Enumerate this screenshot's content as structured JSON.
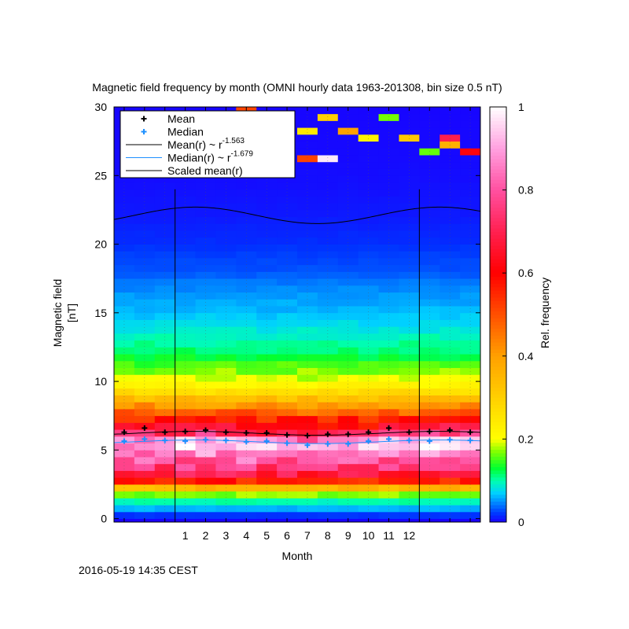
{
  "footer": {
    "timestamp": "2016-05-19 14:35 CEST"
  },
  "chart_data": {
    "type": "heatmap",
    "title": "Magnetic field frequency by month (OMNI hourly data 1963-201308, bin size 0.5 nT)",
    "xlabel": "Month",
    "ylabel": [
      "Magnetic field",
      "[nT]"
    ],
    "colorbar_label": "Rel. frequency",
    "xlim": [
      -2.5,
      15.5
    ],
    "ylim": [
      -0.25,
      30
    ],
    "x_ticks": [
      "1",
      "2",
      "3",
      "4",
      "5",
      "6",
      "7",
      "8",
      "9",
      "10",
      "11",
      "12"
    ],
    "y_ticks": [
      0,
      5,
      10,
      15,
      20,
      25,
      30
    ],
    "colorbar_ticks": [
      0,
      0.2,
      0.4,
      0.6,
      0.8,
      1
    ],
    "colorbar_range": [
      0,
      1
    ],
    "bin_size_nT": 0.5,
    "period_boundaries_month": [
      0.5,
      12.5
    ],
    "legend_position": "top-left",
    "legend": [
      {
        "label": "Mean",
        "kind": "point",
        "color": "#000000"
      },
      {
        "label": "Median",
        "kind": "point",
        "color": "#1e90ff"
      },
      {
        "label": "Mean(r) ~ r",
        "exponent": "-1.563",
        "kind": "line",
        "color": "#000000"
      },
      {
        "label": "Median(r) ~ r",
        "exponent": "-1.679",
        "kind": "line",
        "color": "#1e90ff"
      },
      {
        "label": "Scaled mean(r)",
        "kind": "line",
        "color": "#000000"
      }
    ],
    "months": [
      -2,
      -1,
      0,
      1,
      2,
      3,
      4,
      5,
      6,
      7,
      8,
      9,
      10,
      11,
      12,
      13,
      14,
      15
    ],
    "series": [
      {
        "name": "Mean",
        "values": [
          6.3,
          6.6,
          6.3,
          6.35,
          6.45,
          6.3,
          6.25,
          6.25,
          6.1,
          6.05,
          6.15,
          6.15,
          6.3,
          6.6,
          6.3,
          6.35,
          6.45,
          6.3
        ]
      },
      {
        "name": "Median",
        "values": [
          5.65,
          5.8,
          5.7,
          5.65,
          5.75,
          5.7,
          5.6,
          5.65,
          5.5,
          5.35,
          5.45,
          5.45,
          5.65,
          5.8,
          5.7,
          5.65,
          5.75,
          5.7
        ]
      },
      {
        "name": "Mean(r) ~ r^-1.563",
        "curve": {
          "center": 6.22,
          "amplitude": 0.14,
          "phase_month": 1.5
        }
      },
      {
        "name": "Median(r) ~ r^-1.679",
        "curve": {
          "center": 5.6,
          "amplitude": 0.13,
          "phase_month": 1.5
        }
      },
      {
        "name": "Scaled mean(r)",
        "curve": {
          "center": 22.1,
          "amplitude": 0.6,
          "phase_month": 1.5
        }
      }
    ],
    "heatmap_profile": {
      "peak_nT": 5.5,
      "note_peak_frequency": 1.0,
      "profile_points": [
        [
          0,
          0.0
        ],
        [
          0.5,
          0.04
        ],
        [
          1.0,
          0.08
        ],
        [
          1.5,
          0.12
        ],
        [
          2.0,
          0.22
        ],
        [
          2.5,
          0.48
        ],
        [
          3.0,
          0.65
        ],
        [
          3.5,
          0.72
        ],
        [
          4.0,
          0.78
        ],
        [
          4.5,
          0.85
        ],
        [
          5.0,
          0.88
        ],
        [
          5.5,
          0.96
        ],
        [
          6.0,
          0.78
        ],
        [
          6.5,
          0.65
        ],
        [
          7.0,
          0.6
        ],
        [
          7.5,
          0.52
        ],
        [
          8.0,
          0.44
        ],
        [
          8.5,
          0.38
        ],
        [
          9.0,
          0.3
        ],
        [
          9.5,
          0.24
        ],
        [
          10.0,
          0.2
        ],
        [
          11.0,
          0.16
        ],
        [
          12.0,
          0.12
        ],
        [
          13.0,
          0.1
        ],
        [
          14.0,
          0.08
        ],
        [
          15.0,
          0.065
        ],
        [
          16.0,
          0.055
        ],
        [
          17.0,
          0.045
        ],
        [
          18.0,
          0.03
        ],
        [
          19.0,
          0.025
        ],
        [
          20.0,
          0.018
        ],
        [
          22.0,
          0.01
        ],
        [
          24.0,
          0.006
        ],
        [
          26.0,
          0.004
        ],
        [
          30.0,
          0.002
        ]
      ]
    },
    "colormap": [
      [
        0.0,
        "#1a00ff"
      ],
      [
        0.02,
        "#0033ff"
      ],
      [
        0.05,
        "#0090ff"
      ],
      [
        0.07,
        "#00d0ff"
      ],
      [
        0.1,
        "#00ffb0"
      ],
      [
        0.13,
        "#00ff30"
      ],
      [
        0.17,
        "#80ff00"
      ],
      [
        0.2,
        "#ffff00"
      ],
      [
        0.3,
        "#ffd000"
      ],
      [
        0.4,
        "#ffa000"
      ],
      [
        0.5,
        "#ff5000"
      ],
      [
        0.6,
        "#ff0000"
      ],
      [
        0.7,
        "#ff2050"
      ],
      [
        0.8,
        "#ff50a0"
      ],
      [
        0.9,
        "#ffa0e0"
      ],
      [
        1.0,
        "#ffffff"
      ]
    ]
  }
}
